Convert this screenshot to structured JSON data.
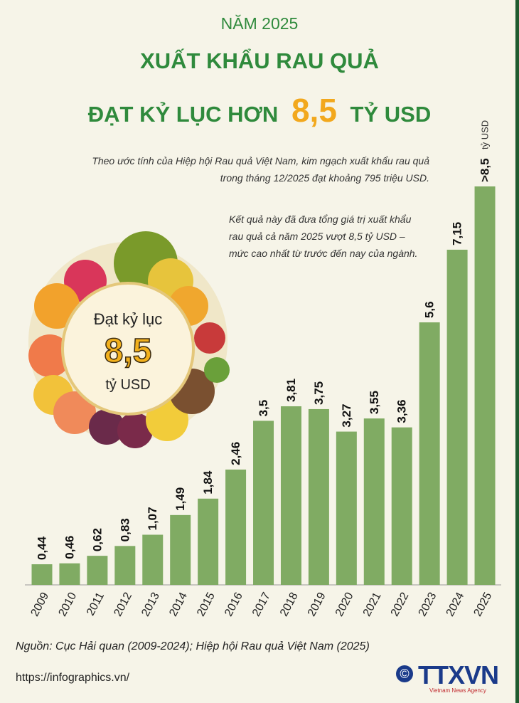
{
  "header": {
    "kicker": "NĂM 2025",
    "title": "XUẤT KHẨU RAU QUẢ",
    "subtitle_prefix": "ĐẠT KỶ LỤC HƠN",
    "highlight": "8,5",
    "subtitle_suffix": "TỶ USD"
  },
  "notes": [
    [
      "Theo ước tính của Hiệp hội Rau quả Việt Nam, kim ngạch xuất khẩu rau quả",
      "trong tháng 12/2025 đạt khoảng 795 triệu USD."
    ],
    [
      "Kết quả này đã đưa tổng giá trị xuất khẩu",
      "rau quả cả năm 2025 vượt 8,5 tỷ USD –",
      "mức cao nhất từ trước đến nay của ngành."
    ]
  ],
  "badge": {
    "line1": "Đạt kỷ lục",
    "number": "8,5",
    "line2": "tỷ USD"
  },
  "chart_data": {
    "type": "bar",
    "color": "#80ab63",
    "unit_label": "tỷ USD",
    "categories": [
      "2009",
      "2010",
      "2011",
      "2012",
      "2013",
      "2014",
      "2015",
      "2016",
      "2017",
      "2018",
      "2019",
      "2020",
      "2021",
      "2022",
      "2023",
      "2024",
      "2025"
    ],
    "values": [
      0.44,
      0.46,
      0.62,
      0.83,
      1.07,
      1.49,
      1.84,
      2.46,
      3.5,
      3.81,
      3.75,
      3.27,
      3.55,
      3.36,
      5.6,
      7.15,
      8.5
    ],
    "value_labels": [
      "0,44",
      "0,46",
      "0,62",
      "0,83",
      "1,07",
      "1,49",
      "1,84",
      "2,46",
      "3,5",
      "3,81",
      "3,75",
      "3,27",
      "3,55",
      "3,36",
      "5,6",
      "7,15",
      ">8,5"
    ]
  },
  "source": "Nguồn: Cục Hải quan (2009-2024); Hiệp hội Rau quả Việt Nam (2025)",
  "url": "https://infographics.vn/",
  "logo": {
    "copyright": "©",
    "name": "TTXVN",
    "tagline": "Vietnam News Agency"
  }
}
